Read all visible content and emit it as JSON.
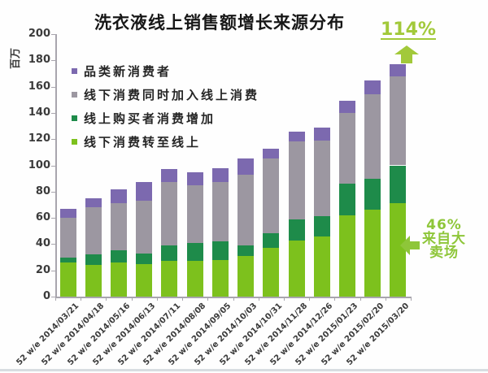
{
  "title": "洗衣液线上销售额增长来源分布",
  "y_axis": {
    "title": "百万",
    "min": 0,
    "max": 200,
    "step": 20
  },
  "legend": [
    {
      "label": "品类新消费者",
      "color": "#7c69af"
    },
    {
      "label": "线下消费同时加入线上消费",
      "color": "#9c97a1"
    },
    {
      "label": "线上购买者消费增加",
      "color": "#1e8b4a"
    },
    {
      "label": "线下消费转至线上",
      "color": "#7dc11d"
    }
  ],
  "callouts": {
    "growth": {
      "text": "114%",
      "color": "#a2c93a"
    },
    "hypermarket": {
      "lines": [
        "46%",
        "来自大",
        "卖场"
      ],
      "color": "#8ec639"
    }
  },
  "chart_data": {
    "type": "bar",
    "stacked": true,
    "title": "洗衣液线上销售额增长来源分布",
    "xlabel": "",
    "ylabel": "百万",
    "ylim": [
      0,
      200
    ],
    "ytick_step": 20,
    "grid": false,
    "legend_position": "upper-left-inside",
    "categories": [
      "52 w/e 2014/03/21",
      "52 w/e 2014/04/18",
      "52 w/e 2014/05/16",
      "52 w/e 2014/06/13",
      "52 w/e 2014/07/11",
      "52 w/e 2014/08/08",
      "52 w/e 2014/09/05",
      "52 w/e 2014/10/03",
      "52 w/e 2014/10/31",
      "52 w/e 2014/11/28",
      "52 w/e 2014/12/26",
      "52 w/e 2015/01/23",
      "52 w/e 2015/02/20",
      "52 w/e 2015/03/20"
    ],
    "series": [
      {
        "name": "线下消费转至线上",
        "color": "#7dc11d",
        "values": [
          26,
          24,
          26,
          25,
          27,
          27,
          28,
          31,
          37,
          43,
          46,
          62,
          66,
          71
        ]
      },
      {
        "name": "线上购买者消费增加",
        "color": "#1e8b4a",
        "values": [
          4,
          8,
          9,
          8,
          12,
          14,
          14,
          8,
          11,
          16,
          15,
          24,
          24,
          29
        ]
      },
      {
        "name": "线下消费同时加入线上消费",
        "color": "#9c97a1",
        "values": [
          30,
          36,
          36,
          40,
          48,
          44,
          45,
          54,
          57,
          59,
          58,
          54,
          64,
          68
        ]
      },
      {
        "name": "品类新消费者",
        "color": "#7c69af",
        "values": [
          7,
          7,
          11,
          14,
          10,
          10,
          11,
          12,
          8,
          8,
          10,
          9,
          11,
          9
        ]
      }
    ],
    "totals": [
      67,
      75,
      82,
      87,
      97,
      95,
      98,
      105,
      113,
      126,
      129,
      149,
      165,
      177
    ],
    "annotations": [
      {
        "text": "114%",
        "position": "above last bar"
      },
      {
        "text": "46% 来自大卖场",
        "position": "right of last bar light-green segment"
      }
    ]
  }
}
